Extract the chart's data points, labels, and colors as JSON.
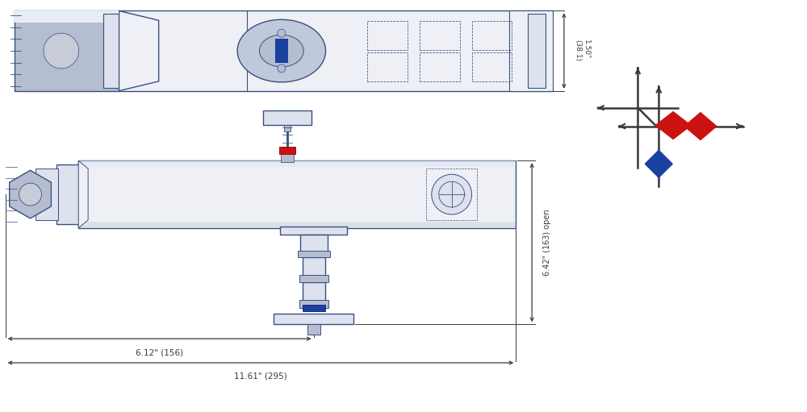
{
  "bg_color": "#ffffff",
  "lc": "#4a6090",
  "lcd": "#3a5080",
  "dim_c": "#3a3a3a",
  "red": "#cc1111",
  "blue": "#1a40a0",
  "gray_l": "#dde2ee",
  "gray_m": "#b5bdd0",
  "gray_d": "#8890a8",
  "white_body": "#eef0f5",
  "sym_line": "#383838"
}
